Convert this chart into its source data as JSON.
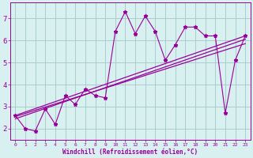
{
  "xlabel": "Windchill (Refroidissement éolien,°C)",
  "bg_color": "#d8f0f0",
  "line_color": "#990099",
  "grid_color": "#aacccc",
  "xlim": [
    -0.5,
    23.5
  ],
  "ylim": [
    1.5,
    7.7
  ],
  "xticks": [
    0,
    1,
    2,
    3,
    4,
    5,
    6,
    7,
    8,
    9,
    10,
    11,
    12,
    13,
    14,
    15,
    16,
    17,
    18,
    19,
    20,
    21,
    22,
    23
  ],
  "yticks": [
    2,
    3,
    4,
    5,
    6,
    7
  ],
  "scatter_x": [
    0,
    1,
    2,
    3,
    4,
    5,
    6,
    7,
    8,
    9,
    10,
    11,
    12,
    13,
    14,
    15,
    16,
    17,
    18,
    19,
    20,
    21,
    22,
    23
  ],
  "scatter_y": [
    2.6,
    2.0,
    1.9,
    2.9,
    2.2,
    3.5,
    3.1,
    3.8,
    3.5,
    3.4,
    6.4,
    7.3,
    6.3,
    7.1,
    6.4,
    5.1,
    5.8,
    6.6,
    6.6,
    6.2,
    6.2,
    2.7,
    5.1,
    6.2
  ],
  "line1_x": [
    0,
    23
  ],
  "line1_y": [
    2.6,
    6.2
  ],
  "line2_x": [
    0,
    23
  ],
  "line2_y": [
    2.55,
    5.85
  ],
  "line3_x": [
    0,
    23
  ],
  "line3_y": [
    2.45,
    6.05
  ]
}
